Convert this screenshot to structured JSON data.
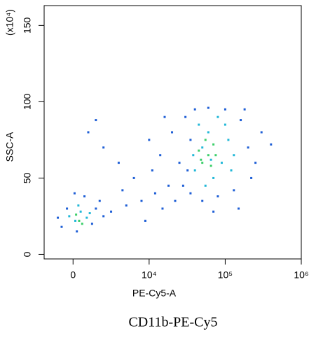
{
  "chart_data": {
    "type": "scatter",
    "x_label": "PE-Cy5-A",
    "y_label": "SSC-A",
    "y_multiplier": "(x10⁴)",
    "caption": "CD11b-PE-Cy5",
    "x_scale": "biexponential",
    "x_linear_below": 10000,
    "xlim": [
      -3800,
      1000000
    ],
    "xticks": [
      0,
      {
        "value": 10000,
        "label": "10⁴"
      },
      {
        "value": 100000,
        "label": "10⁵"
      },
      {
        "value": 1000000,
        "label": "10⁶"
      }
    ],
    "ylim": [
      -3,
      163
    ],
    "yticks": [
      0,
      50,
      100,
      150
    ],
    "series": [
      {
        "color": "#1f5fd6",
        "x": [
          -1500,
          500,
          2500,
          3000,
          -800,
          1500,
          4000,
          200,
          -2000,
          3500,
          5000,
          7000,
          9000,
          12000,
          15000,
          18000,
          8000,
          6000,
          4000,
          11000,
          14000,
          20000,
          2000,
          3000,
          25000,
          16000,
          10000,
          22000,
          6500,
          9500,
          28000,
          30000,
          35000,
          40000,
          50000,
          60000,
          80000,
          100000,
          130000,
          160000,
          200000,
          250000,
          300000,
          220000,
          35000,
          32000,
          150000,
          70000,
          180000,
          400000
        ],
        "values": [
          18,
          15,
          20,
          30,
          30,
          38,
          25,
          40,
          24,
          35,
          28,
          32,
          35,
          40,
          30,
          45,
          50,
          60,
          70,
          55,
          65,
          80,
          80,
          88,
          60,
          90,
          75,
          35,
          42,
          22,
          45,
          90,
          40,
          95,
          35,
          96,
          38,
          95,
          42,
          88,
          70,
          60,
          80,
          50,
          75,
          55,
          30,
          28,
          95,
          72
        ]
      },
      {
        "color": "#22b8d8",
        "x": [
          300,
          1000,
          -500,
          1800,
          700,
          2200,
          40000,
          50000,
          60000,
          70000,
          90000,
          110000,
          45000,
          80000,
          130000,
          55000,
          120000,
          38000,
          100000,
          65000
        ],
        "values": [
          22,
          28,
          25,
          24,
          32,
          27,
          55,
          70,
          80,
          50,
          60,
          75,
          85,
          90,
          65,
          45,
          55,
          65,
          85,
          62
        ]
      },
      {
        "color": "#3ccf6a",
        "x": [
          800,
          400,
          1200,
          50000,
          60000,
          45000,
          70000,
          55000,
          65000,
          75000,
          48000
        ],
        "values": [
          22,
          26,
          20,
          60,
          65,
          68,
          72,
          75,
          58,
          65,
          62
        ]
      }
    ]
  }
}
